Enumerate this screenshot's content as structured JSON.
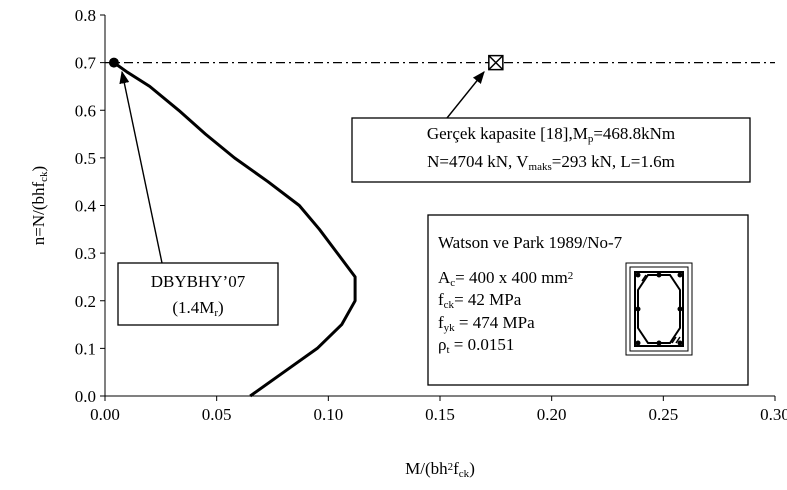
{
  "chart_data": {
    "type": "line",
    "xlabel": [
      {
        "text": "M/(bh"
      },
      {
        "text": "2",
        "baseline": "super"
      },
      {
        "text": "f"
      },
      {
        "text": "ck",
        "baseline": "sub"
      },
      {
        "text": ")"
      }
    ],
    "ylabel": [
      {
        "text": "n=N/(bhf"
      },
      {
        "text": "ck",
        "baseline": "sub"
      },
      {
        "text": ")"
      }
    ],
    "xlim": [
      0,
      0.3
    ],
    "ylim": [
      0,
      0.8
    ],
    "xticks": [
      {
        "value": 0,
        "label": "0.00"
      },
      0.05,
      {
        "value": 0.1,
        "label": "0.10"
      },
      0.15,
      {
        "value": 0.2,
        "label": "0.20"
      },
      0.25,
      {
        "value": 0.3,
        "label": "0.30"
      }
    ],
    "yticks": [
      {
        "value": 0,
        "label": "0.0"
      },
      0.1,
      0.2,
      0.3,
      0.4,
      0.5,
      0.6,
      0.7,
      0.8
    ],
    "curve": {
      "color": "#000000",
      "x": [
        0.065,
        0.08,
        0.095,
        0.106,
        0.112,
        0.112,
        0.104,
        0.096,
        0.087,
        0.073,
        0.058,
        0.045,
        0.033,
        0.02,
        0.01,
        0.004
      ],
      "y": [
        0.0,
        0.05,
        0.1,
        0.15,
        0.2,
        0.25,
        0.3,
        0.35,
        0.4,
        0.45,
        0.5,
        0.55,
        0.6,
        0.65,
        0.68,
        0.7
      ]
    },
    "hline": 0.7,
    "markers": [
      {
        "x": 0.004,
        "y": 0.7,
        "shape": "circle"
      },
      {
        "x": 0.175,
        "y": 0.7,
        "shape": "boxed-x"
      }
    ],
    "annotations": [
      {
        "lines": [
          [
            {
              "text": "Gerçek kapasite [18],M"
            },
            {
              "text": "p",
              "baseline": "sub"
            },
            {
              "text": "=468.8kNm"
            }
          ],
          [
            {
              "text": "N=4704 kN, V"
            },
            {
              "text": "maks",
              "baseline": "sub"
            },
            {
              "text": "=293 kN, L=1.6m"
            }
          ]
        ]
      },
      {
        "lines": [
          [
            {
              "text": "DBYBHY’07"
            }
          ],
          [
            {
              "text": "(1.4M"
            },
            {
              "text": "r",
              "baseline": "sub"
            },
            {
              "text": ")"
            }
          ]
        ]
      }
    ],
    "inset": {
      "title": "Watson ve Park 1989/No-7",
      "lines": [
        [
          {
            "text": "A"
          },
          {
            "text": "c",
            "baseline": "sub"
          },
          {
            "text": "= 400 x 400 mm"
          },
          {
            "text": "2",
            "baseline": "super"
          }
        ],
        [
          {
            "text": "f"
          },
          {
            "text": "ck",
            "baseline": "sub"
          },
          {
            "text": "= 42 MPa"
          }
        ],
        [
          {
            "text": "f"
          },
          {
            "text": "yk",
            "baseline": "sub"
          },
          {
            "text": " = 474 MPa"
          }
        ],
        [
          {
            "text": "ρ"
          },
          {
            "text": "t",
            "baseline": "sub"
          },
          {
            "text": " = 0.0151"
          }
        ]
      ]
    }
  }
}
